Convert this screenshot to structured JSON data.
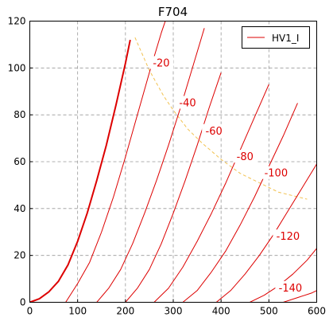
{
  "chart_data": {
    "type": "line",
    "title": "F704",
    "xlabel": "",
    "ylabel": "",
    "xlim": [
      0,
      600
    ],
    "ylim": [
      0,
      120
    ],
    "x_ticks": [
      0,
      100,
      200,
      300,
      400,
      500,
      600
    ],
    "y_ticks": [
      0,
      20,
      40,
      60,
      80,
      100,
      120
    ],
    "grid": true,
    "legend": {
      "position": "top-right",
      "entries": [
        "HV1_I"
      ]
    },
    "colors": {
      "curve": "#dd0000",
      "dissipation": "#f2c250",
      "grid": "#999999",
      "axis": "#000000"
    },
    "series": [
      {
        "name": "HV1_I",
        "grid_voltage": "0",
        "x": [
          0,
          20,
          40,
          60,
          80,
          100,
          120,
          140,
          160,
          180,
          200,
          210
        ],
        "y": [
          0,
          1.5,
          4.5,
          9,
          16,
          26,
          38,
          52,
          67,
          84,
          102,
          112
        ]
      },
      {
        "grid_voltage": "-20",
        "x": [
          75,
          100,
          125,
          150,
          175,
          200,
          225,
          250,
          275,
          300
        ],
        "y": [
          0,
          8,
          17,
          30,
          45,
          62,
          80,
          98,
          115,
          130
        ]
      },
      {
        "grid_voltage": "-40",
        "x": [
          140,
          165,
          190,
          215,
          240,
          265,
          290,
          315,
          340,
          365
        ],
        "y": [
          0,
          6,
          14,
          25,
          38,
          52,
          67,
          83,
          100,
          117
        ]
      },
      {
        "grid_voltage": "-60",
        "x": [
          200,
          225,
          250,
          275,
          300,
          325,
          350,
          375,
          400
        ],
        "y": [
          0,
          6,
          14,
          25,
          38,
          52,
          67,
          83,
          98
        ]
      },
      {
        "grid_voltage": "-80",
        "x": [
          260,
          290,
          320,
          350,
          380,
          410,
          440,
          470,
          500
        ],
        "y": [
          0,
          6,
          15,
          26,
          38,
          51,
          65,
          79,
          93
        ]
      },
      {
        "grid_voltage": "-100",
        "x": [
          320,
          350,
          380,
          410,
          440,
          470,
          500,
          530,
          560
        ],
        "y": [
          0,
          5,
          13,
          22,
          33,
          45,
          58,
          71,
          85
        ]
      },
      {
        "grid_voltage": "-120",
        "x": [
          390,
          420,
          450,
          480,
          510,
          540,
          570,
          600
        ],
        "y": [
          0,
          5,
          12,
          20,
          29,
          39,
          49,
          59
        ]
      },
      {
        "grid_voltage": "-140",
        "x": [
          460,
          490,
          520,
          550,
          580,
          600
        ],
        "y": [
          0,
          3,
          7,
          12,
          18,
          23
        ]
      },
      {
        "grid_voltage": "-160",
        "x": [
          530,
          560,
          590,
          600
        ],
        "y": [
          0,
          2,
          4,
          5
        ]
      }
    ],
    "dissipation_curve": {
      "x": [
        220,
        250,
        280,
        300,
        330,
        360,
        400,
        440,
        480,
        520,
        560,
        580
      ],
      "y": [
        113,
        99,
        88,
        82,
        74,
        68,
        61,
        55,
        51,
        47,
        45,
        44
      ]
    },
    "annotations": [
      "-20",
      "-40",
      "-60",
      "-80",
      "-100",
      "-120",
      "-140"
    ],
    "annotation_at": [
      [
        275,
        102
      ],
      [
        330,
        85
      ],
      [
        385,
        73
      ],
      [
        450,
        62
      ],
      [
        515,
        55
      ],
      [
        540,
        28
      ],
      [
        545,
        6
      ]
    ]
  }
}
